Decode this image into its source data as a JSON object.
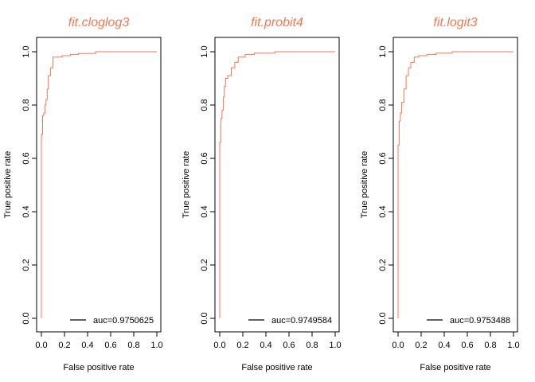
{
  "colors": {
    "curve": "#F07850",
    "title": "#F07850",
    "axis": "#000000"
  },
  "chart_data": [
    {
      "type": "line",
      "title": "fit.cloglog3",
      "xlabel": "False positive rate",
      "ylabel": "True positive rate",
      "xlim": [
        0,
        1
      ],
      "ylim": [
        0,
        1
      ],
      "xticks": [
        "0.0",
        "0.2",
        "0.4",
        "0.6",
        "0.8",
        "1.0"
      ],
      "yticks": [
        "0.0",
        "0.2",
        "0.4",
        "0.6",
        "0.8",
        "1.0"
      ],
      "legend": {
        "text": "auc=0.9750625",
        "position": "bottom-right"
      },
      "series": [
        {
          "x": [
            0,
            0,
            0.01,
            0.01,
            0.02,
            0.02,
            0.03,
            0.03,
            0.04,
            0.04,
            0.05,
            0.05,
            0.06,
            0.06,
            0.08,
            0.08,
            0.1,
            0.1,
            0.13,
            0.13,
            0.18,
            0.18,
            0.25,
            0.25,
            0.32,
            0.32,
            0.47,
            0.47,
            1.0
          ],
          "y": [
            0,
            0.69,
            0.69,
            0.76,
            0.76,
            0.77,
            0.77,
            0.8,
            0.8,
            0.82,
            0.82,
            0.86,
            0.86,
            0.91,
            0.91,
            0.94,
            0.94,
            0.98,
            0.98,
            0.98,
            0.98,
            0.985,
            0.985,
            0.99,
            0.99,
            0.993,
            0.993,
            1.0,
            1.0
          ]
        }
      ]
    },
    {
      "type": "line",
      "title": "fit.probit4",
      "xlabel": "False positive rate",
      "ylabel": "True positive rate",
      "xlim": [
        0,
        1
      ],
      "ylim": [
        0,
        1
      ],
      "xticks": [
        "0.0",
        "0.2",
        "0.4",
        "0.6",
        "0.8",
        "1.0"
      ],
      "yticks": [
        "0.0",
        "0.2",
        "0.4",
        "0.6",
        "0.8",
        "1.0"
      ],
      "legend": {
        "text": "auc=0.9749584",
        "position": "bottom-right"
      },
      "series": [
        {
          "x": [
            0,
            0,
            0.01,
            0.01,
            0.02,
            0.02,
            0.03,
            0.03,
            0.04,
            0.04,
            0.05,
            0.05,
            0.07,
            0.07,
            0.1,
            0.1,
            0.13,
            0.13,
            0.16,
            0.16,
            0.22,
            0.22,
            0.3,
            0.3,
            0.48,
            0.48,
            1.0
          ],
          "y": [
            0,
            0.66,
            0.66,
            0.75,
            0.75,
            0.78,
            0.78,
            0.83,
            0.83,
            0.87,
            0.87,
            0.9,
            0.9,
            0.91,
            0.91,
            0.94,
            0.94,
            0.96,
            0.96,
            0.98,
            0.98,
            0.99,
            0.99,
            0.995,
            0.995,
            1.0,
            1.0
          ]
        }
      ]
    },
    {
      "type": "line",
      "title": "fit.logit3",
      "xlabel": "False positive rate",
      "ylabel": "True positive rate",
      "xlim": [
        0,
        1
      ],
      "ylim": [
        0,
        1
      ],
      "xticks": [
        "0.0",
        "0.2",
        "0.4",
        "0.6",
        "0.8",
        "1.0"
      ],
      "yticks": [
        "0.0",
        "0.2",
        "0.4",
        "0.6",
        "0.8",
        "1.0"
      ],
      "legend": {
        "text": "auc=0.9753488",
        "position": "bottom-right"
      },
      "series": [
        {
          "x": [
            0,
            0,
            0.01,
            0.01,
            0.02,
            0.02,
            0.03,
            0.03,
            0.05,
            0.05,
            0.07,
            0.07,
            0.09,
            0.09,
            0.11,
            0.11,
            0.14,
            0.14,
            0.18,
            0.18,
            0.25,
            0.25,
            0.33,
            0.33,
            0.47,
            0.47,
            1.0
          ],
          "y": [
            0,
            0.65,
            0.65,
            0.74,
            0.74,
            0.77,
            0.77,
            0.81,
            0.81,
            0.86,
            0.86,
            0.91,
            0.91,
            0.94,
            0.94,
            0.96,
            0.96,
            0.98,
            0.98,
            0.985,
            0.985,
            0.99,
            0.99,
            0.995,
            0.995,
            1.0,
            1.0
          ]
        }
      ]
    }
  ]
}
